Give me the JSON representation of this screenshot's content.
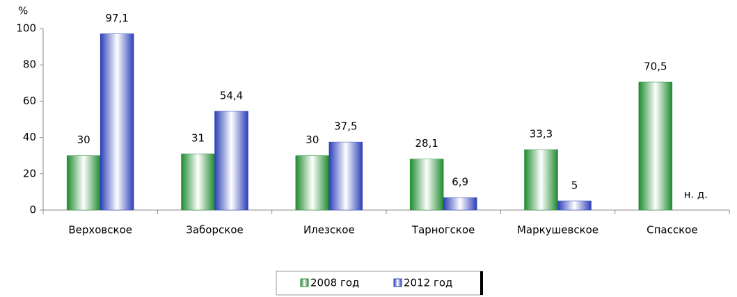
{
  "chart_data": {
    "type": "bar",
    "y_label": "%",
    "categories": [
      "Верховское",
      "Заборское",
      "Илезское",
      "Тарногское",
      "Маркушевское",
      "Спасское"
    ],
    "series": [
      {
        "name": "2008 год",
        "color": "#1f8a2e",
        "values": [
          30,
          31,
          30,
          28.1,
          33.3,
          70.5
        ],
        "value_labels": [
          "30",
          "31",
          "30",
          "28,1",
          "33,3",
          "70,5"
        ]
      },
      {
        "name": "2012 год",
        "color": "#2b3fb8",
        "values": [
          97.1,
          54.4,
          37.5,
          6.9,
          5,
          null
        ],
        "value_labels": [
          "97,1",
          "54,4",
          "37,5",
          "6,9",
          "5",
          "н. д."
        ]
      }
    ],
    "ylim": [
      0,
      100
    ],
    "yticks": [
      0,
      20,
      40,
      60,
      80,
      100
    ],
    "grid": false,
    "legend": "bottom"
  }
}
